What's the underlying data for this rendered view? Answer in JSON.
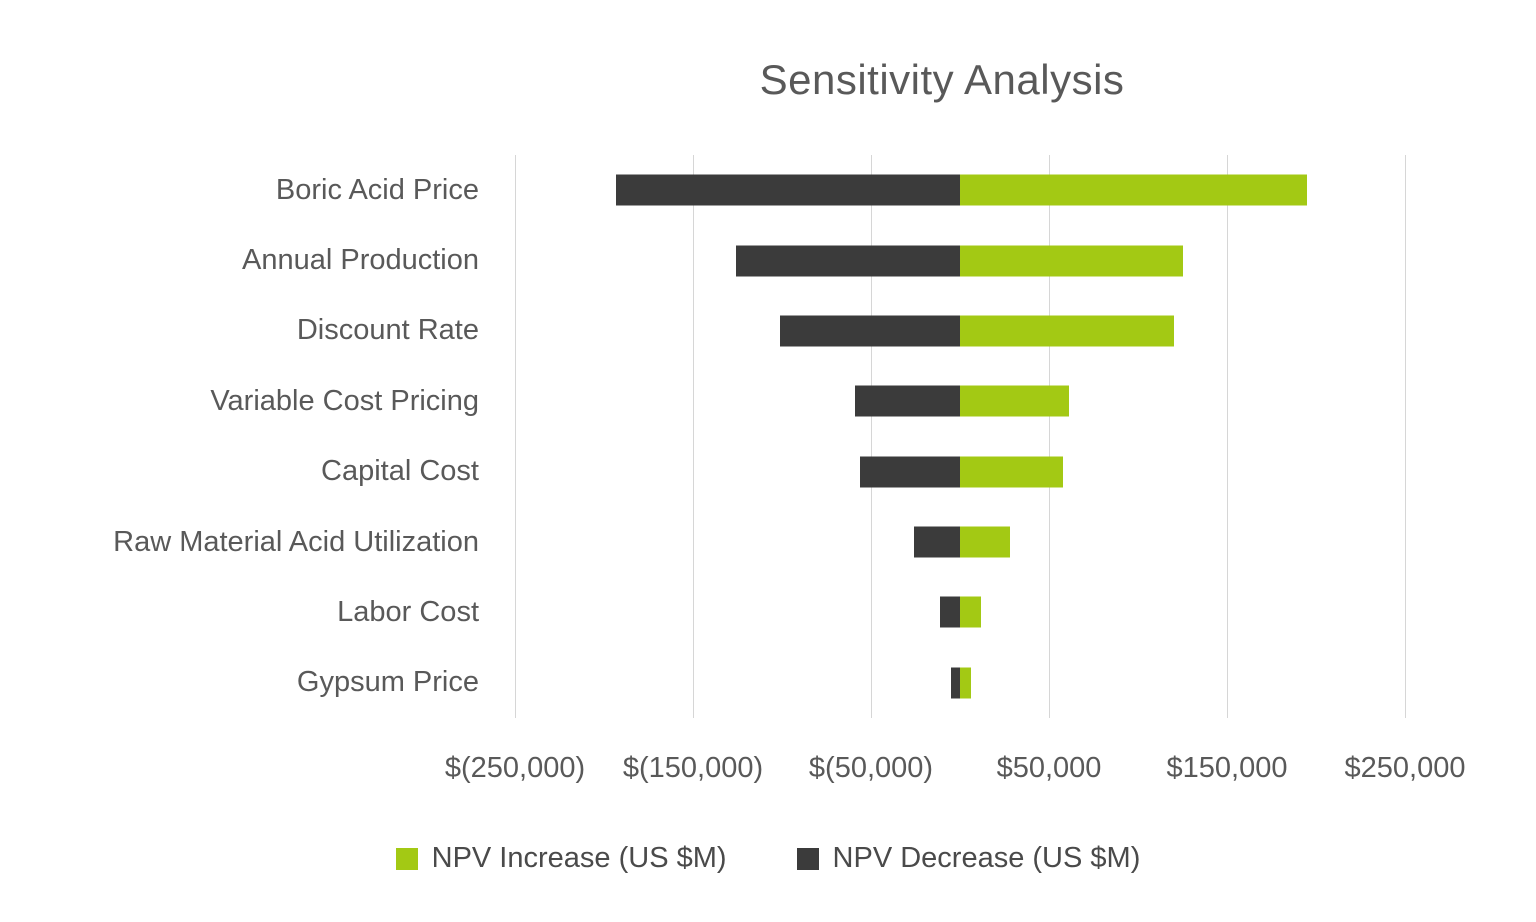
{
  "chart_data": {
    "type": "bar",
    "orientation": "horizontal",
    "variant": "tornado",
    "title": "Sensitivity Analysis",
    "categories": [
      "Boric Acid Price",
      "Annual Production",
      "Discount Rate",
      "Variable Cost Pricing",
      "Capital Cost",
      "Raw Material Acid Utilization",
      "Labor Cost",
      "Gypsum Price"
    ],
    "series": [
      {
        "name": "NPV Increase (US $M)",
        "color": "#a3c914",
        "values": [
          195000,
          125000,
          120000,
          61000,
          58000,
          28000,
          12000,
          6000
        ]
      },
      {
        "name": "NPV Decrease (US $M)",
        "color": "#3b3b3b",
        "values": [
          -193000,
          -126000,
          -101000,
          -59000,
          -56000,
          -26000,
          -11000,
          -5000
        ]
      }
    ],
    "x_axis": {
      "min": -250000,
      "max": 250000,
      "tick_values": [
        -250000,
        -150000,
        -50000,
        50000,
        150000,
        250000
      ],
      "tick_labels": [
        "$(250,000)",
        "$(150,000)",
        "$(50,000)",
        "$50,000",
        "$150,000",
        "$250,000"
      ]
    },
    "grid": true,
    "gridline_color": "#d6d6d6",
    "legend_position": "bottom",
    "text_color": "#595959",
    "background_color": "#ffffff"
  }
}
